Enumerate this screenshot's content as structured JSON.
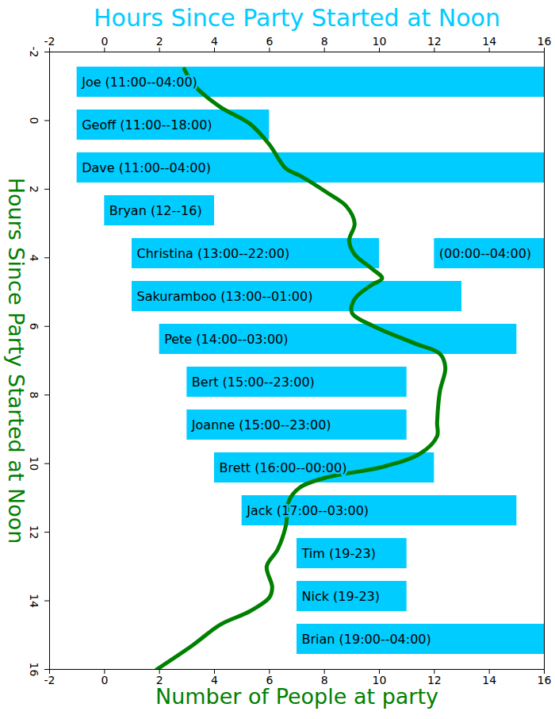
{
  "chart_data": [
    {
      "type": "bar",
      "orientation": "horizontal",
      "xlabel": "Hours Since Party Started at Noon",
      "xlim": [
        -2,
        16
      ],
      "xticks": [
        -2,
        0,
        2,
        4,
        6,
        8,
        10,
        12,
        14,
        16
      ],
      "color": "#00ccff",
      "rows": [
        {
          "bars": [
            {
              "start": -1,
              "end": 16,
              "label": "Joe (11:00--04:00)"
            }
          ]
        },
        {
          "bars": [
            {
              "start": -1,
              "end": 6,
              "label": "Geoff (11:00--18:00)"
            }
          ]
        },
        {
          "bars": [
            {
              "start": -1,
              "end": 16,
              "label": "Dave (11:00--04:00)"
            }
          ]
        },
        {
          "bars": [
            {
              "start": 0,
              "end": 4,
              "label": "Bryan (12--16)"
            }
          ]
        },
        {
          "bars": [
            {
              "start": 1,
              "end": 10,
              "label": "Christina (13:00--22:00)"
            },
            {
              "start": 12,
              "end": 16,
              "label": "(00:00--04:00)"
            }
          ]
        },
        {
          "bars": [
            {
              "start": 1,
              "end": 13,
              "label": "Sakuramboo (13:00--01:00)"
            }
          ]
        },
        {
          "bars": [
            {
              "start": 2,
              "end": 15,
              "label": "Pete (14:00--03:00)"
            }
          ]
        },
        {
          "bars": [
            {
              "start": 3,
              "end": 11,
              "label": "Bert (15:00--23:00)"
            }
          ]
        },
        {
          "bars": [
            {
              "start": 3,
              "end": 11,
              "label": "Joanne (15:00--23:00)"
            }
          ]
        },
        {
          "bars": [
            {
              "start": 4,
              "end": 12,
              "label": "Brett (16:00--00:00)"
            }
          ]
        },
        {
          "bars": [
            {
              "start": 5,
              "end": 15,
              "label": "Jack (17:00--03:00)"
            }
          ]
        },
        {
          "bars": [
            {
              "start": 7,
              "end": 11,
              "label": "Tim (19-23)"
            }
          ]
        },
        {
          "bars": [
            {
              "start": 7,
              "end": 11,
              "label": "Nick (19-23)"
            }
          ]
        },
        {
          "bars": [
            {
              "start": 7,
              "end": 16,
              "label": "Brian (19:00--04:00)"
            }
          ]
        }
      ]
    },
    {
      "type": "line",
      "xlabel": "Number of People at party",
      "ylabel": "Hours Since Party Started at Noon",
      "xlim": [
        -2,
        16
      ],
      "xticks": [
        -2,
        0,
        2,
        4,
        6,
        8,
        10,
        12,
        14,
        16
      ],
      "ylim": [
        16,
        -2
      ],
      "yticks": [
        -2,
        0,
        2,
        4,
        6,
        8,
        10,
        12,
        14,
        16
      ],
      "color": "#008000",
      "x": [
        2.9,
        3.3,
        4.2,
        5.3,
        6.0,
        6.6,
        7.1,
        8.1,
        8.8,
        9.1,
        8.9,
        9.1,
        9.7,
        10.1,
        9.7,
        9.1,
        9.0,
        9.8,
        11.3,
        12.2,
        12.4,
        12.2,
        12.1,
        12.1,
        11.5,
        10.1,
        8.1,
        7.1,
        6.7,
        6.6,
        6.3,
        5.9,
        6.1,
        6.0,
        5.3,
        4.2,
        3.2,
        1.9
      ],
      "y": [
        -1.5,
        -1.0,
        -0.4,
        0.1,
        0.7,
        1.4,
        1.6,
        2.1,
        2.5,
        3.0,
        3.5,
        3.9,
        4.3,
        4.6,
        4.8,
        5.2,
        5.6,
        6.0,
        6.5,
        6.8,
        7.2,
        7.9,
        8.8,
        9.2,
        9.7,
        10.1,
        10.4,
        10.7,
        11.1,
        11.8,
        12.5,
        13.0,
        13.6,
        13.9,
        14.3,
        14.7,
        15.3,
        16.0
      ]
    }
  ]
}
